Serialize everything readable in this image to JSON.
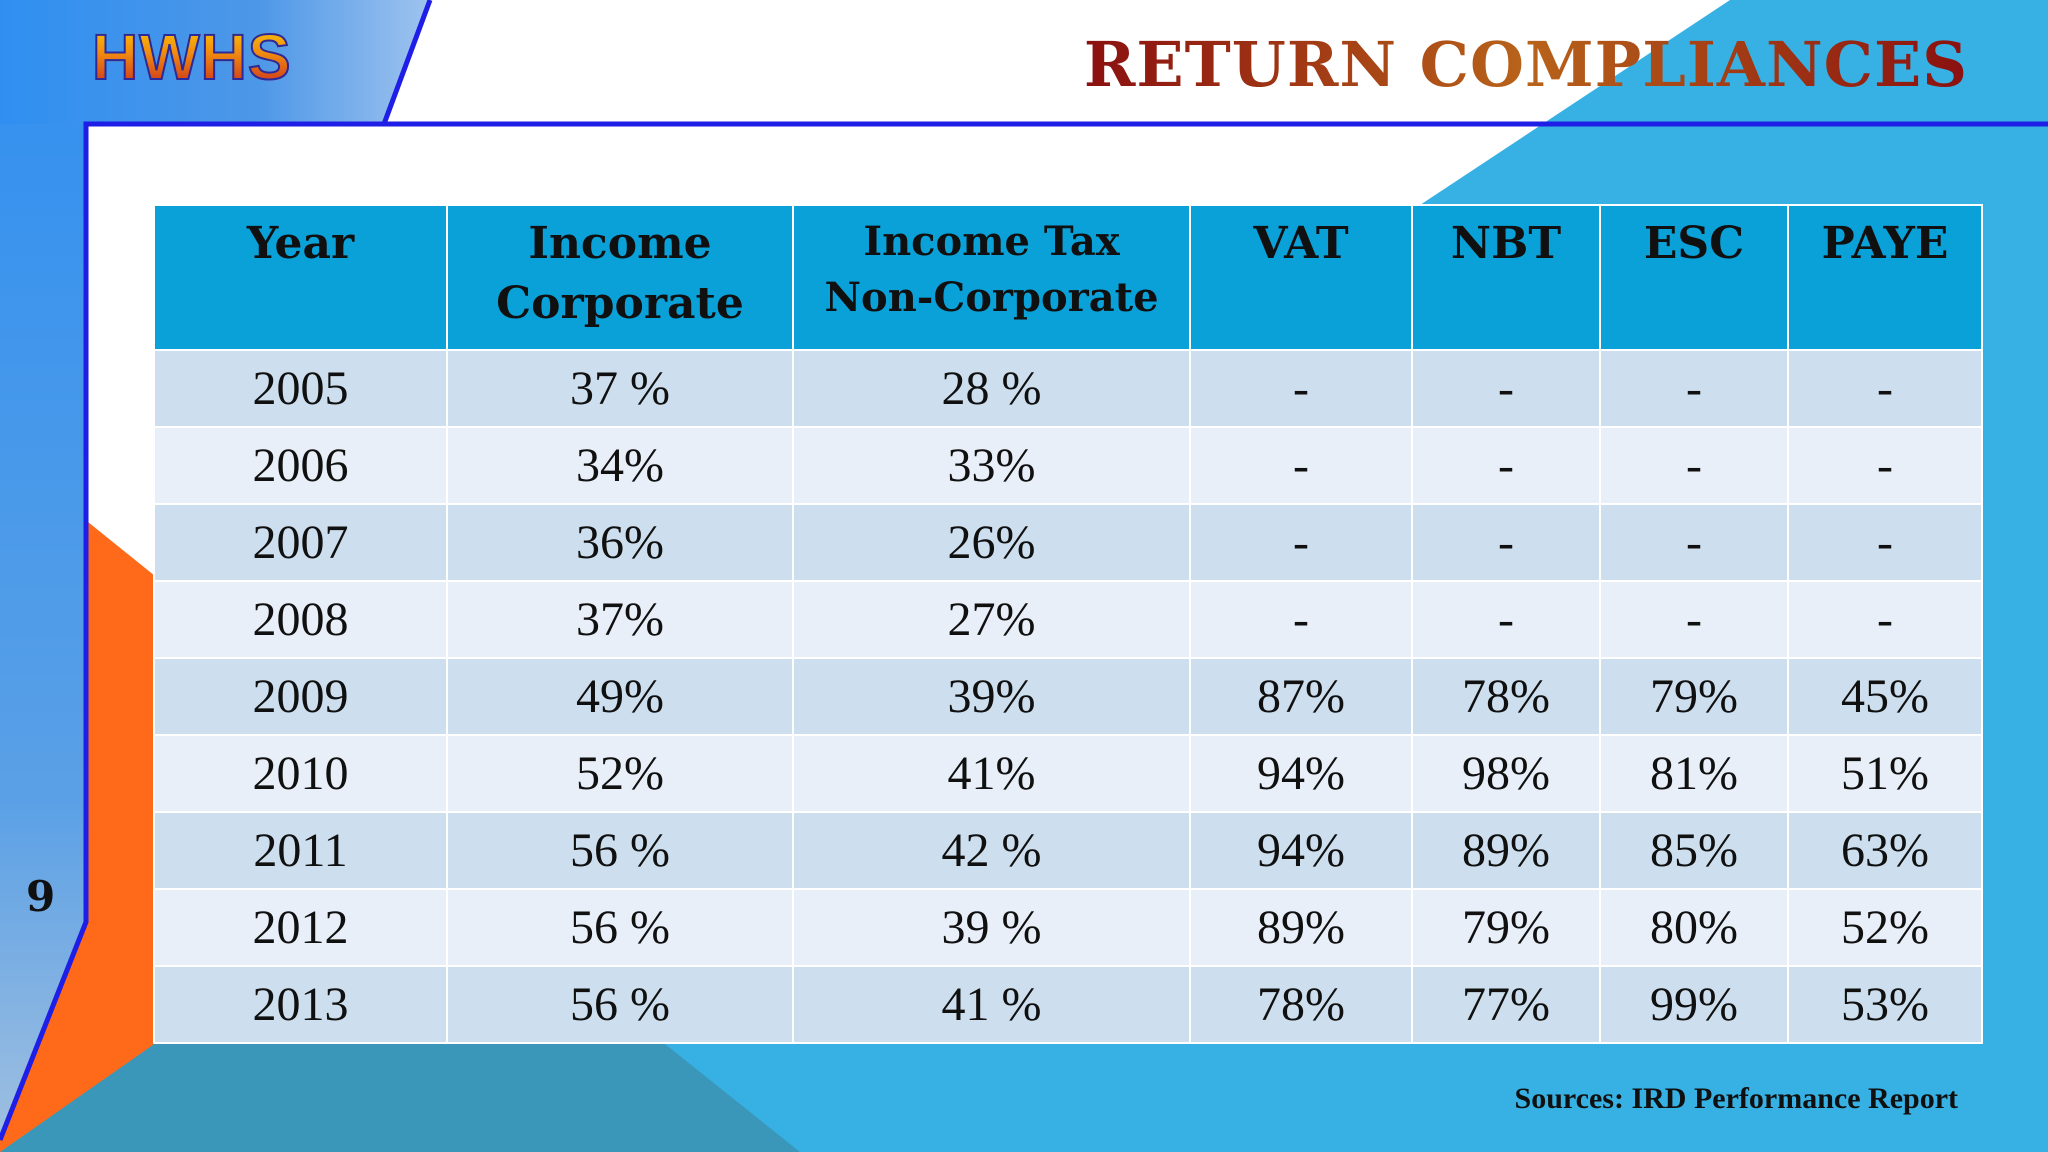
{
  "header": {
    "logo": "HWHS",
    "title": "RETURN COMPLIANCES"
  },
  "slide": {
    "page_number": "9",
    "sources": "Sources: IRD Performance Report"
  },
  "colors": {
    "header_blue": "#0aa1d9",
    "row_dark": "#cddfee",
    "row_light": "#e8eff8",
    "frame_blue": "#1e1ee6",
    "accent_orange": "#ff6a1a",
    "accent_sky": "#37b1e3"
  },
  "table": {
    "columns": [
      [
        "Year"
      ],
      [
        "Income",
        "Corporate"
      ],
      [
        "Income Tax",
        "Non-Corporate"
      ],
      [
        "VAT"
      ],
      [
        "NBT"
      ],
      [
        "ESC"
      ],
      [
        "PAYE"
      ]
    ],
    "rows": [
      [
        "2005",
        "37 %",
        "28 %",
        "-",
        "-",
        "-",
        "-"
      ],
      [
        "2006",
        "34%",
        "33%",
        "-",
        "-",
        "-",
        "-"
      ],
      [
        "2007",
        "36%",
        "26%",
        "-",
        "-",
        "-",
        "-"
      ],
      [
        "2008",
        "37%",
        "27%",
        "-",
        "-",
        "-",
        "-"
      ],
      [
        "2009",
        "49%",
        "39%",
        "87%",
        "78%",
        "79%",
        "45%"
      ],
      [
        "2010",
        "52%",
        "41%",
        "94%",
        "98%",
        "81%",
        "51%"
      ],
      [
        "2011",
        "56 %",
        "42 %",
        "94%",
        "89%",
        "85%",
        "63%"
      ],
      [
        "2012",
        "56 %",
        "39 %",
        "89%",
        "79%",
        "80%",
        "52%"
      ],
      [
        "2013",
        "56 %",
        "41 %",
        "78%",
        "77%",
        "99%",
        "53%"
      ]
    ]
  }
}
